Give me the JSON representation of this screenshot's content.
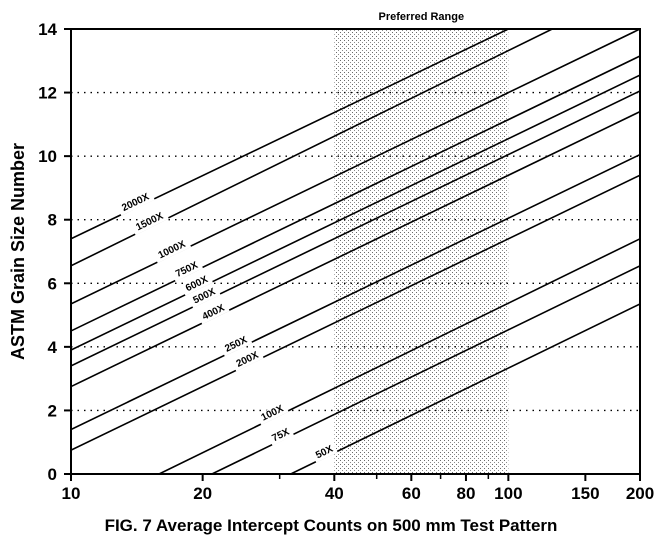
{
  "caption": "FIG. 7 Average Intercept Counts on 500 mm Test Pattern",
  "chart_data": {
    "type": "line",
    "title": "",
    "xlabel": "",
    "ylabel": "ASTM Grain Size Number",
    "x_scale": "log",
    "xlim": [
      10,
      200
    ],
    "ylim": [
      0,
      14
    ],
    "x_ticks": [
      10,
      20,
      40,
      60,
      80,
      100,
      150,
      200
    ],
    "x_minor_ticks": [
      30,
      50,
      70,
      90
    ],
    "y_ticks": [
      0,
      2,
      4,
      6,
      8,
      10,
      12,
      14
    ],
    "grid": "dotted horizontal lines at y ticks",
    "shaded_region": {
      "label": "Preferred Range",
      "x_from": 40,
      "x_to": 100
    },
    "series": [
      {
        "name": "2000X",
        "points": [
          [
            10,
            7.4
          ],
          [
            100,
            14.0
          ]
        ]
      },
      {
        "name": "1500X",
        "points": [
          [
            10,
            6.55
          ],
          [
            126,
            14.0
          ]
        ]
      },
      {
        "name": "1000X",
        "points": [
          [
            10,
            5.35
          ],
          [
            200,
            14.0
          ]
        ]
      },
      {
        "name": "750X",
        "points": [
          [
            10,
            4.5
          ],
          [
            200,
            13.15
          ]
        ]
      },
      {
        "name": "600X",
        "points": [
          [
            10,
            3.9
          ],
          [
            200,
            12.55
          ]
        ]
      },
      {
        "name": "500X",
        "points": [
          [
            10,
            3.4
          ],
          [
            200,
            12.05
          ]
        ]
      },
      {
        "name": "400X",
        "points": [
          [
            10,
            2.75
          ],
          [
            200,
            11.4
          ]
        ]
      },
      {
        "name": "250X",
        "points": [
          [
            10,
            1.4
          ],
          [
            200,
            10.05
          ]
        ]
      },
      {
        "name": "200X",
        "points": [
          [
            10,
            0.75
          ],
          [
            200,
            9.4
          ]
        ]
      },
      {
        "name": "100X",
        "points": [
          [
            15.9,
            0.0
          ],
          [
            200,
            7.4
          ]
        ]
      },
      {
        "name": "75X",
        "points": [
          [
            21.0,
            0.0
          ],
          [
            200,
            6.55
          ]
        ]
      },
      {
        "name": "50X",
        "points": [
          [
            31.8,
            0.0
          ],
          [
            200,
            5.35
          ]
        ]
      }
    ]
  }
}
